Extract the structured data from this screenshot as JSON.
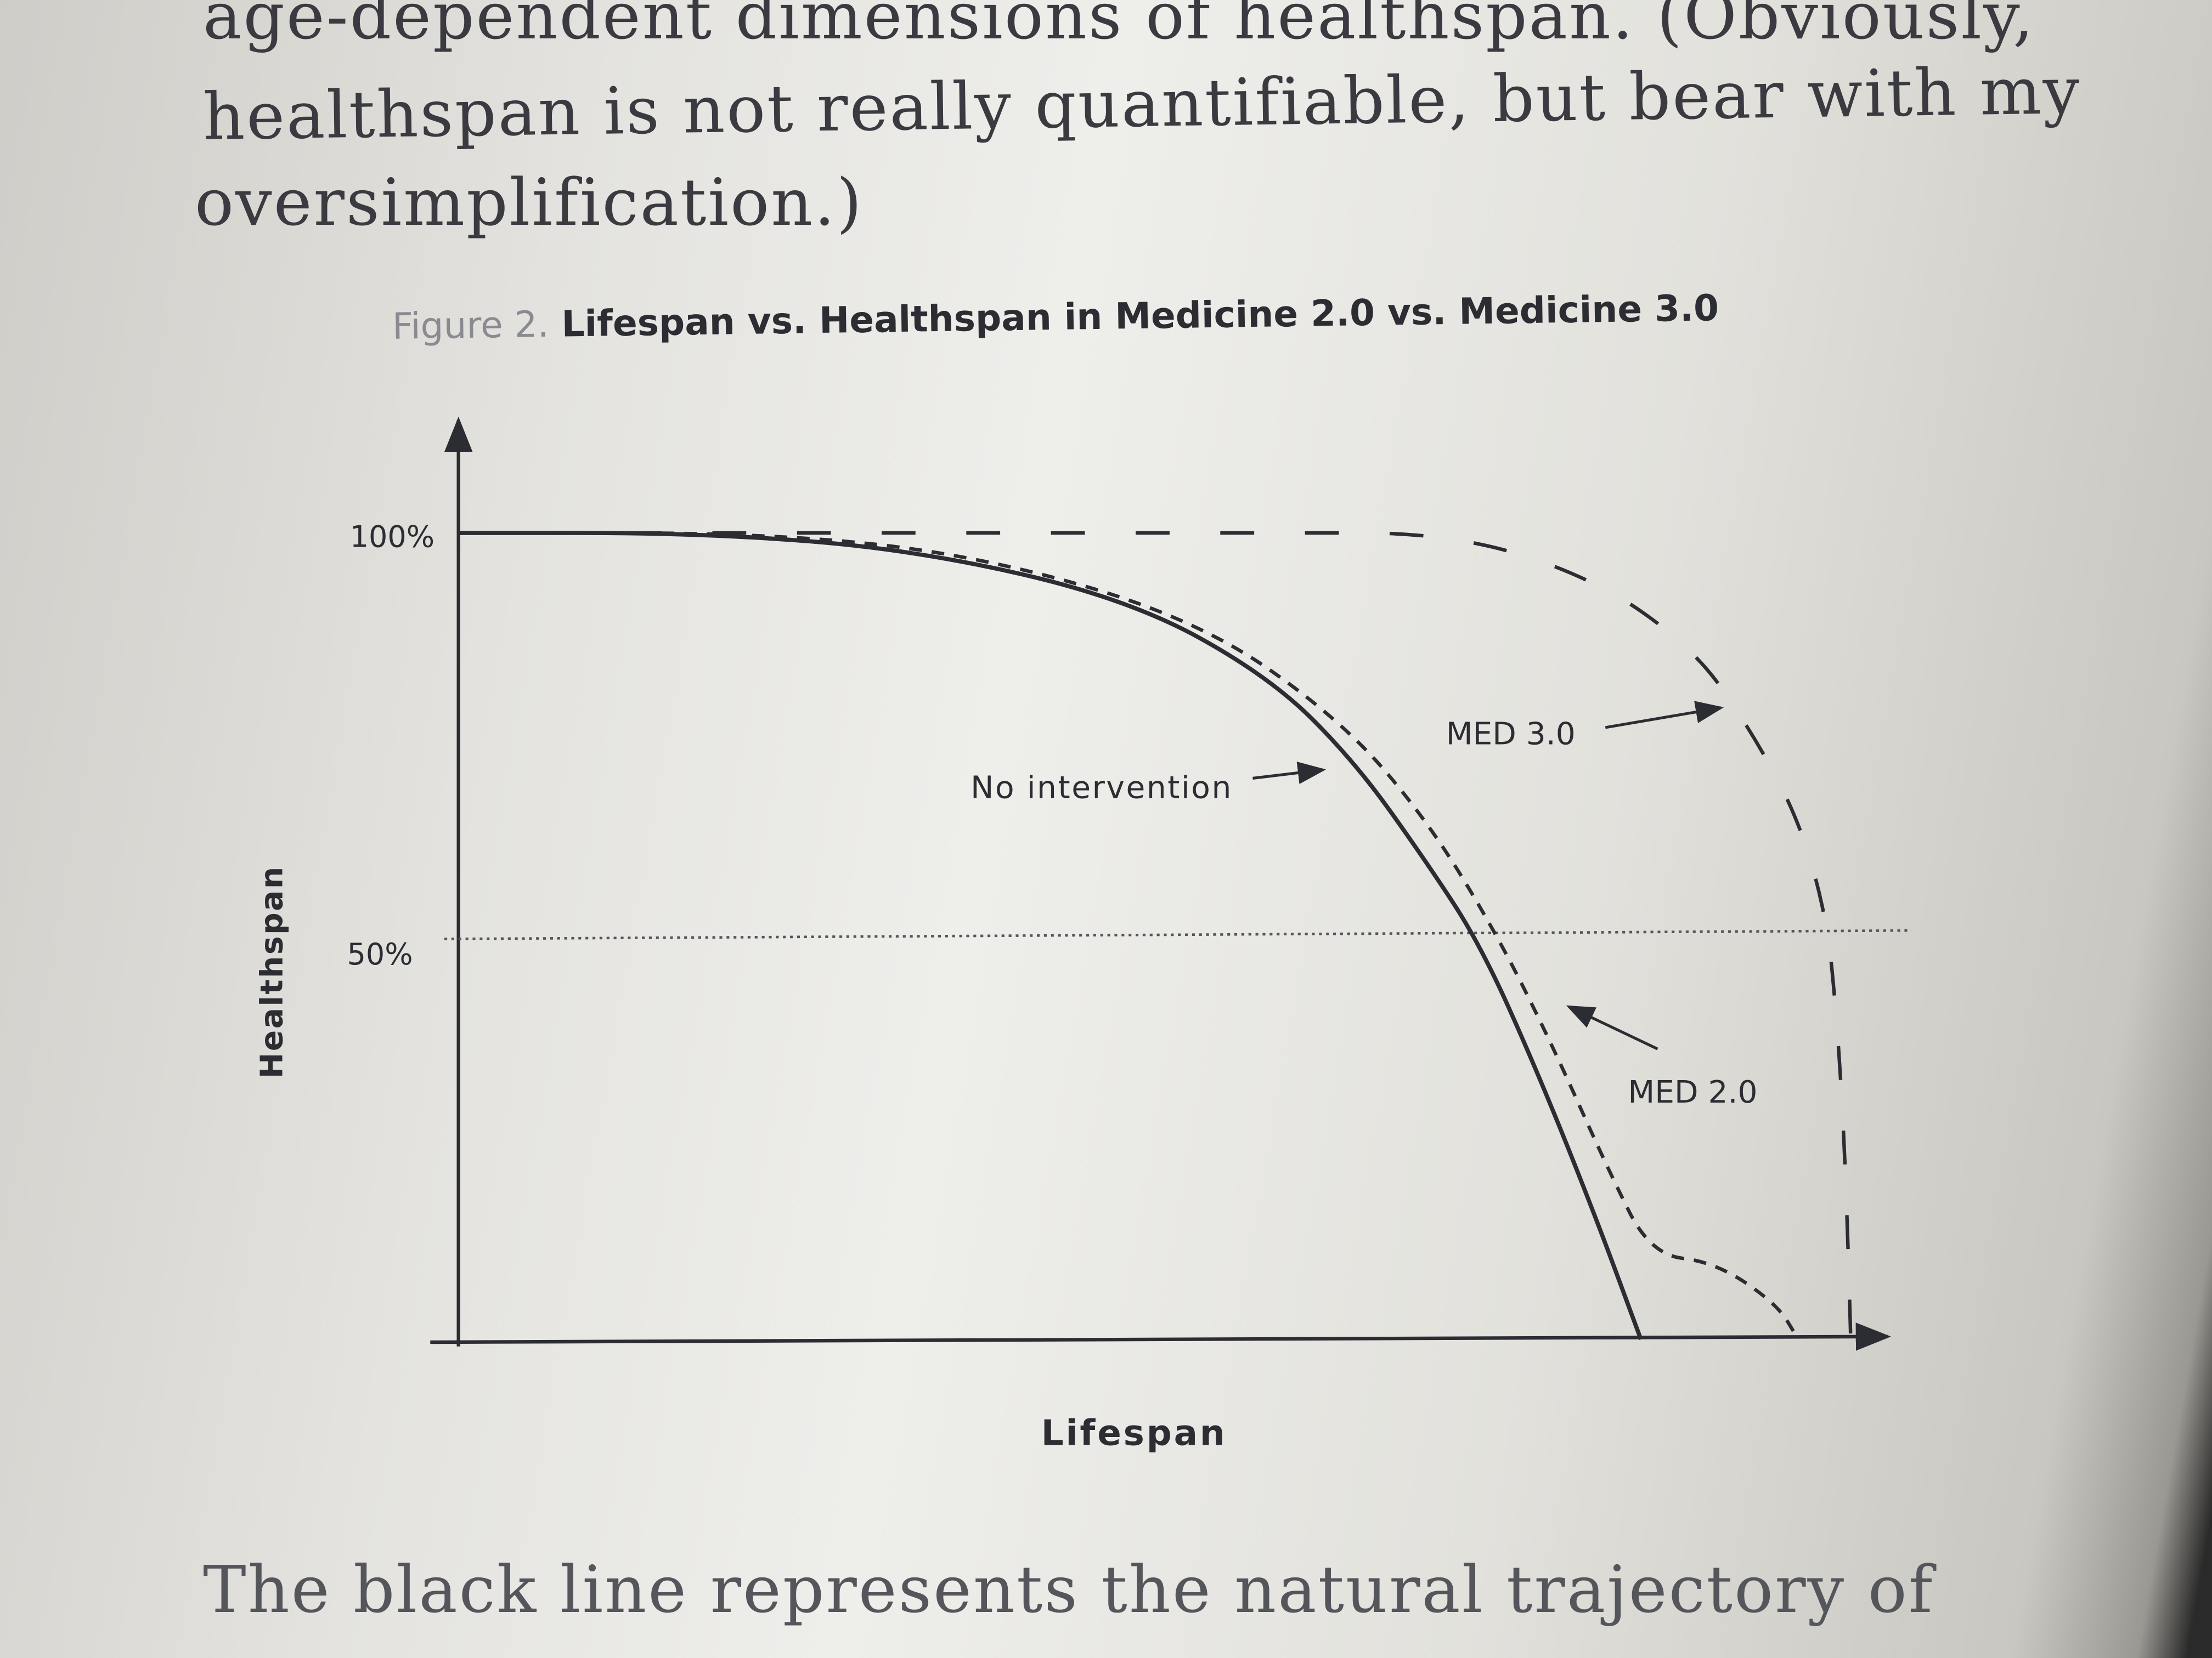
{
  "text": {
    "line1": "age-dependent dimensions of healthspan. (Obviously,",
    "line2": "healthspan is not really quantifiable, but bear with my",
    "line3": "oversimplification.)",
    "after": "The black line represents the natural trajectory of"
  },
  "chart_data": {
    "type": "line",
    "figure_label": "Figure 2.",
    "title": "Lifespan vs. Healthspan in Medicine 2.0 vs. Medicine 3.0",
    "xlabel": "Lifespan",
    "ylabel": "Healthspan",
    "yticks": [
      "100%",
      "50%"
    ],
    "ylim": [
      0,
      100
    ],
    "xlim": [
      0,
      100
    ],
    "reference_line": {
      "y": 50,
      "style": "dotted"
    },
    "series": [
      {
        "name": "No intervention",
        "style": "solid",
        "x": [
          0,
          17.4,
          32.3,
          47.3,
          57.2,
          63.2,
          68.2,
          72.1,
          76.1,
          80.1,
          83.4
        ],
        "y": [
          100,
          100,
          97.9,
          91.8,
          82.2,
          71.7,
          59.4,
          48.9,
          33.2,
          15.7,
          0
        ]
      },
      {
        "name": "MED 2.0",
        "style": "short-dash",
        "x": [
          0,
          22.4,
          37.3,
          52.2,
          62.2,
          68.2,
          73.1,
          77.1,
          81.1,
          84.1,
          88.6,
          93.0,
          94.5
        ],
        "y": [
          100,
          100,
          97.0,
          89.2,
          76.9,
          64.7,
          50.7,
          36.7,
          21.0,
          10.5,
          9.6,
          4.4,
          0
        ]
      },
      {
        "name": "MED 3.0",
        "style": "long-dash",
        "x": [
          0,
          27.4,
          57.2,
          70.1,
          80.1,
          87.1,
          91.0,
          94.5,
          96.5,
          97.2,
          97.7,
          98.0,
          98.2
        ],
        "y": [
          100,
          100,
          100,
          100,
          94.4,
          85.7,
          76.0,
          64.7,
          52.4,
          40.2,
          26.2,
          12.2,
          0
        ]
      }
    ],
    "grid": false
  }
}
